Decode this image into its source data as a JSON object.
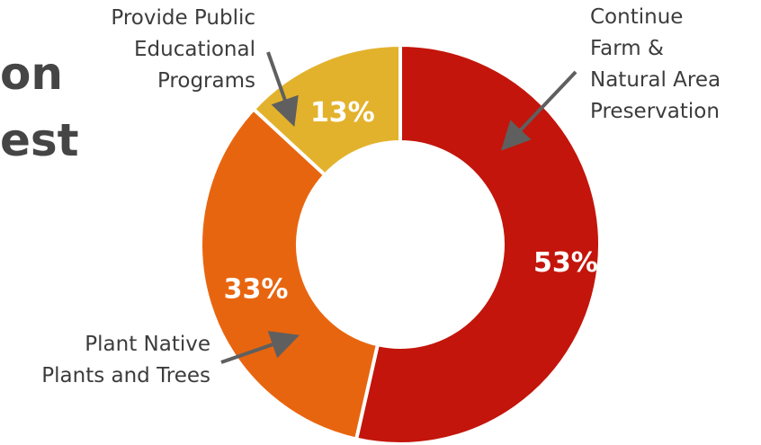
{
  "title_fragments": [
    "on",
    "est"
  ],
  "colors": {
    "continue-farm": "#c3150b",
    "plant-native": "#e8650f",
    "public-programs": "#e3b22c",
    "arrow": "#5f5f5f",
    "text": "#3c3c3c"
  },
  "chart_data": {
    "type": "pie",
    "donut": true,
    "slices": [
      {
        "label_lines": [
          "Continue",
          "Farm &",
          "Natural Area",
          "Preservation"
        ],
        "value": 53,
        "value_label": "53%",
        "color": "#c3150b"
      },
      {
        "label_lines": [
          "Plant Native",
          "Plants and Trees"
        ],
        "value": 33,
        "value_label": "33%",
        "color": "#e8650f"
      },
      {
        "label_lines": [
          "Provide Public",
          "Educational",
          "Programs"
        ],
        "value": 13,
        "value_label": "13%",
        "color": "#e3b22c"
      }
    ],
    "legend": "none"
  }
}
